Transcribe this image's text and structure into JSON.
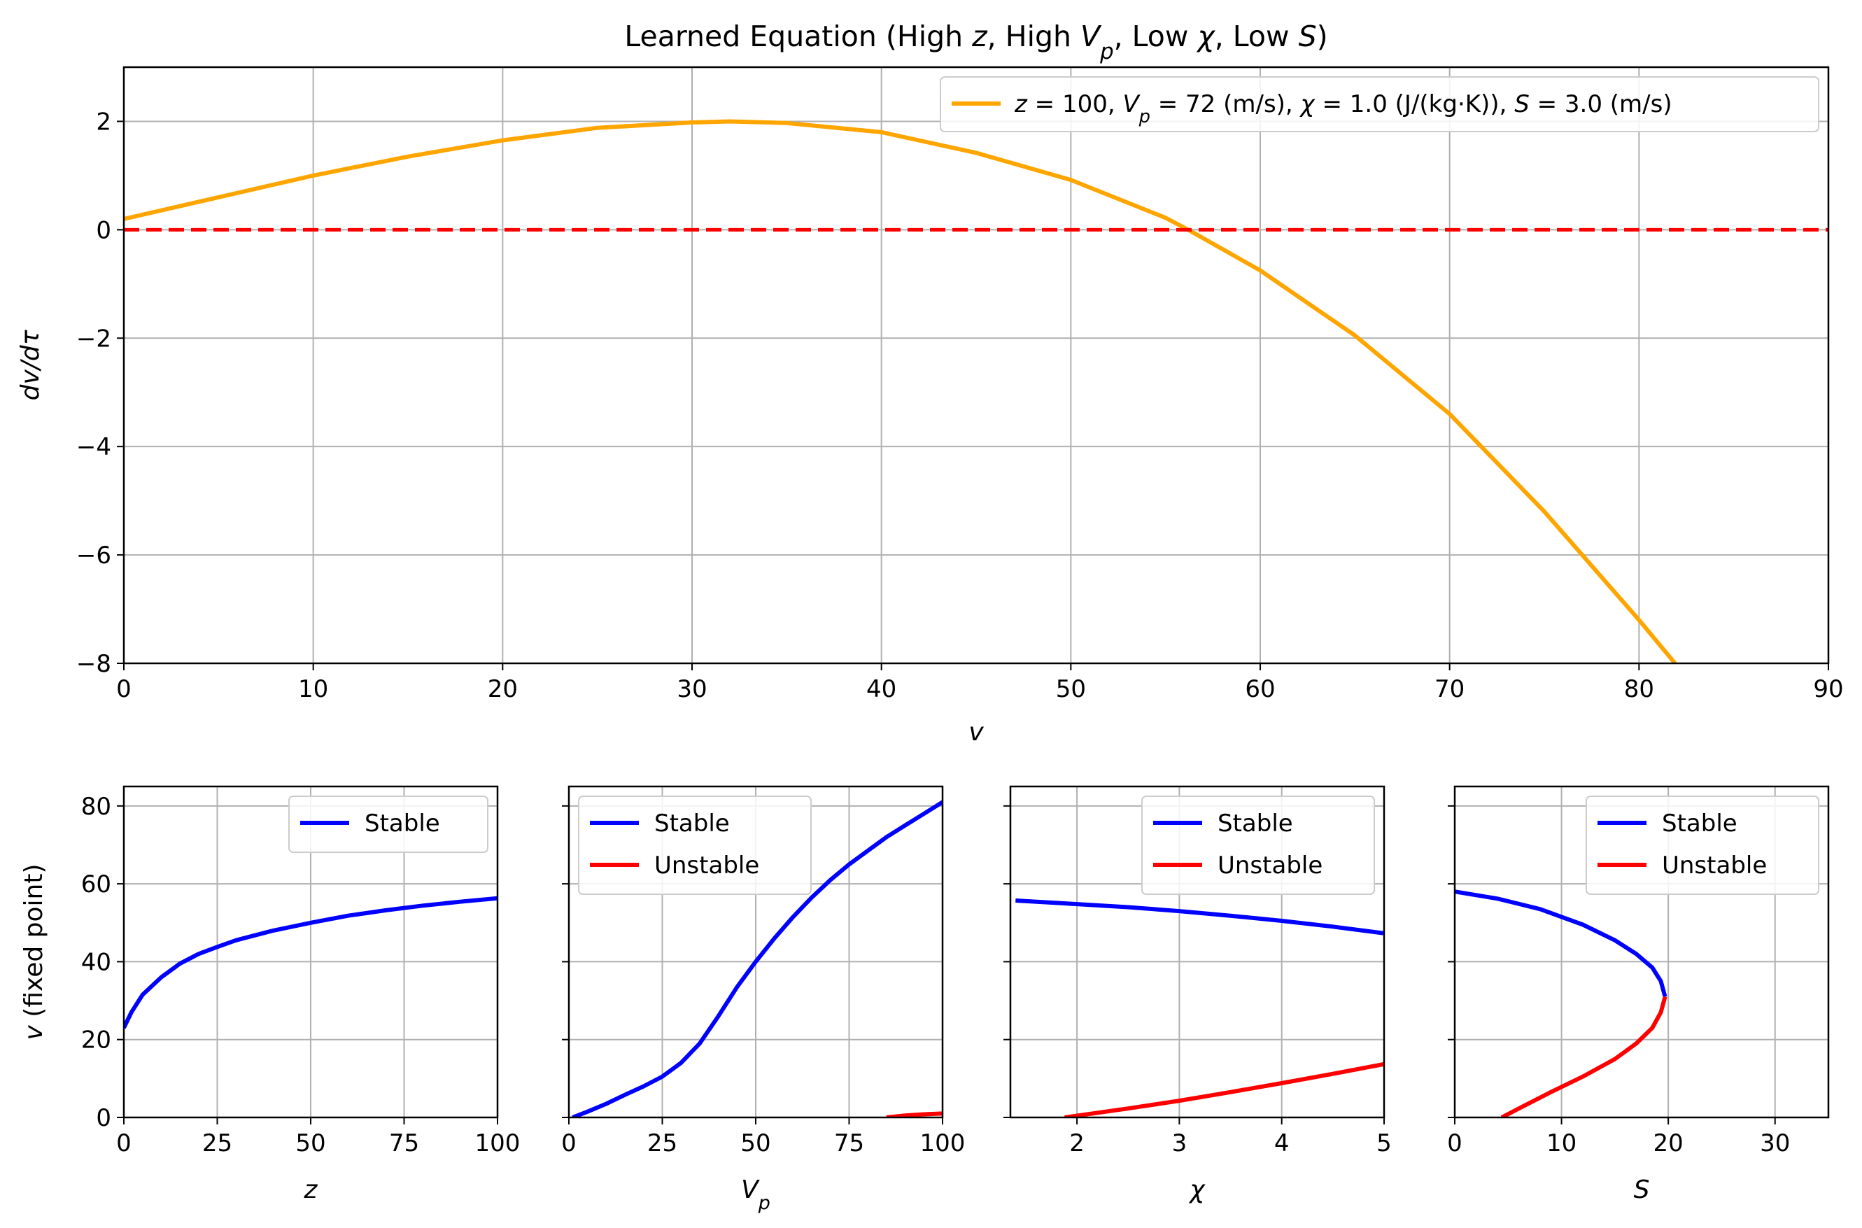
{
  "chart_data": [
    {
      "type": "line",
      "title": "Learned Equation (High z, High Vp, Low χ, Low S)",
      "title_parts": [
        {
          "t": "Learned Equation (High ",
          "i": false
        },
        {
          "t": "z",
          "i": true
        },
        {
          "t": ", High ",
          "i": false
        },
        {
          "t": "V",
          "i": true
        },
        {
          "t": "p",
          "i": true,
          "sub": true
        },
        {
          "t": ", Low ",
          "i": false
        },
        {
          "t": "χ",
          "i": true
        },
        {
          "t": ", Low ",
          "i": false
        },
        {
          "t": "S",
          "i": true
        },
        {
          "t": ")",
          "i": false
        }
      ],
      "xlabel": "v",
      "ylabel": "dv/dτ",
      "xlim": [
        0,
        90
      ],
      "ylim": [
        -8,
        3
      ],
      "xticks": [
        0,
        10,
        20,
        30,
        40,
        50,
        60,
        70,
        80,
        90
      ],
      "yticks": [
        -8,
        -6,
        -4,
        -2,
        0,
        2
      ],
      "ytick_labels": [
        "−8",
        "−6",
        "−4",
        "−2",
        "0",
        "2"
      ],
      "grid": true,
      "legend_position": "top-right",
      "legend_text": "z = 100, Vp = 72 (m/s), χ = 1.0 (J/(kg·K)), S = 3.0 (m/s)",
      "legend_parts": [
        {
          "t": "z",
          "i": true
        },
        {
          "t": " = 100, ",
          "i": false
        },
        {
          "t": "V",
          "i": true
        },
        {
          "t": "p",
          "i": true,
          "sub": true
        },
        {
          "t": " = 72 (m/s), ",
          "i": false
        },
        {
          "t": "χ",
          "i": true
        },
        {
          "t": " = 1.0 (J/(kg·K)), ",
          "i": false
        },
        {
          "t": "S",
          "i": true
        },
        {
          "t": " = 3.0 (m/s)",
          "i": false
        }
      ],
      "series": [
        {
          "name": "z = 100, Vp = 72 (m/s), χ = 1.0 (J/(kg·K)), S = 3.0 (m/s)",
          "color": "#ffa500",
          "x": [
            0,
            5,
            10,
            15,
            20,
            25,
            30,
            32,
            35,
            40,
            45,
            50,
            55,
            56.2,
            60,
            65,
            70,
            75,
            80,
            81.9
          ],
          "y": [
            0.2,
            0.6,
            1.0,
            1.35,
            1.65,
            1.88,
            1.98,
            2.0,
            1.97,
            1.8,
            1.42,
            0.92,
            0.22,
            0.0,
            -0.75,
            -1.95,
            -3.4,
            -5.2,
            -7.2,
            -8.0
          ]
        },
        {
          "name": "",
          "color": "#ff0000",
          "dashed": true,
          "x": [
            0,
            90
          ],
          "y": [
            0,
            0
          ]
        }
      ]
    },
    {
      "type": "line",
      "xlabel": "z",
      "ylabel": "v (fixed point)",
      "xlim": [
        0,
        100
      ],
      "ylim": [
        0,
        85
      ],
      "xticks": [
        0,
        25,
        50,
        75,
        100
      ],
      "yticks": [
        0,
        20,
        40,
        60,
        80
      ],
      "grid": true,
      "legend_position": "top-right",
      "series": [
        {
          "name": "Stable",
          "color": "#0000ff",
          "x": [
            0,
            2,
            5,
            10,
            15,
            20,
            25,
            30,
            40,
            50,
            60,
            70,
            80,
            90,
            100
          ],
          "y": [
            23,
            27,
            31.5,
            36,
            39.5,
            42,
            43.8,
            45.5,
            48,
            50,
            51.8,
            53.2,
            54.4,
            55.4,
            56.3
          ]
        }
      ]
    },
    {
      "type": "line",
      "xlabel": "Vp",
      "xlim": [
        0,
        100
      ],
      "ylim": [
        0,
        85
      ],
      "xticks": [
        0,
        25,
        50,
        75,
        100
      ],
      "yticks": [
        0,
        20,
        40,
        60,
        80
      ],
      "grid": true,
      "legend_position": "top-left",
      "series": [
        {
          "name": "Stable",
          "color": "#0000ff",
          "x": [
            1,
            5,
            10,
            15,
            20,
            25,
            30,
            35,
            40,
            45,
            50,
            55,
            60,
            65,
            70,
            75,
            80,
            85,
            90,
            95,
            100
          ],
          "y": [
            0,
            1.5,
            3.5,
            5.8,
            8,
            10.5,
            14,
            19,
            26,
            33.5,
            40,
            46,
            51.5,
            56.5,
            61,
            65,
            68.5,
            72,
            75,
            78,
            81
          ]
        },
        {
          "name": "Unstable",
          "color": "#ff0000",
          "x": [
            85,
            90,
            95,
            100
          ],
          "y": [
            0,
            0.5,
            0.8,
            1.0
          ]
        }
      ]
    },
    {
      "type": "line",
      "xlabel": "χ",
      "xlim": [
        1.35,
        5
      ],
      "ylim": [
        0,
        85
      ],
      "xticks": [
        2,
        3,
        4,
        5
      ],
      "yticks": [
        0,
        20,
        40,
        60,
        80
      ],
      "grid": true,
      "legend_position": "top-right",
      "series": [
        {
          "name": "Stable",
          "color": "#0000ff",
          "x": [
            1.4,
            2,
            2.5,
            3,
            3.5,
            4,
            4.5,
            5
          ],
          "y": [
            55.7,
            54.8,
            54,
            53,
            51.8,
            50.5,
            49,
            47.3
          ]
        },
        {
          "name": "Unstable",
          "color": "#ff0000",
          "x": [
            1.88,
            2.5,
            3,
            3.5,
            4,
            4.5,
            5
          ],
          "y": [
            0,
            2.3,
            4.3,
            6.5,
            8.8,
            11.2,
            13.7
          ]
        }
      ]
    },
    {
      "type": "line",
      "xlabel": "S",
      "xlim": [
        0,
        35
      ],
      "ylim": [
        0,
        85
      ],
      "xticks": [
        0,
        10,
        20,
        30
      ],
      "yticks": [
        0,
        20,
        40,
        60,
        80
      ],
      "grid": true,
      "legend_position": "top-right",
      "series": [
        {
          "name": "Stable",
          "color": "#0000ff",
          "x": [
            0,
            4,
            8,
            12,
            15,
            17,
            18.5,
            19.3,
            19.7
          ],
          "y": [
            58,
            56.2,
            53.5,
            49.5,
            45.5,
            42,
            38.5,
            35,
            31
          ]
        },
        {
          "name": "Unstable",
          "color": "#ff0000",
          "x": [
            19.7,
            19.3,
            18.5,
            17,
            15,
            12,
            9,
            6.5,
            4.4
          ],
          "y": [
            31,
            27,
            23,
            19,
            15,
            10.5,
            6.5,
            3,
            0
          ]
        }
      ]
    }
  ]
}
